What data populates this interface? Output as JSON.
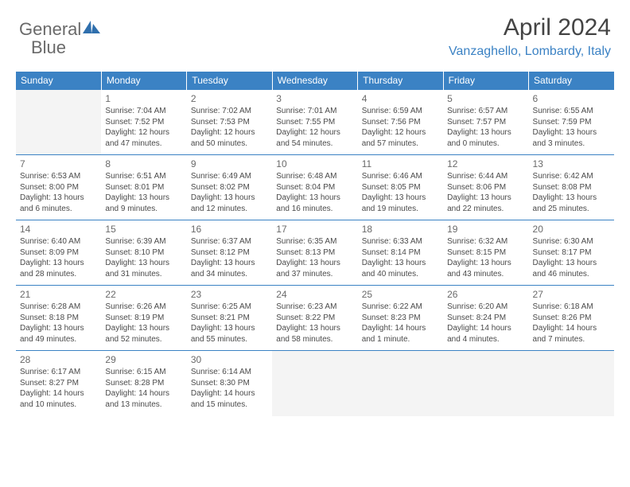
{
  "logo": {
    "primary": "General",
    "secondary": "Blue",
    "text_color": "#6a6a6a",
    "accent_color": "#2f6fad"
  },
  "title": "April 2024",
  "location": "Vanzaghello, Lombardy, Italy",
  "colors": {
    "header_bg": "#3b82c4",
    "header_text": "#ffffff",
    "row_border": "#3b82c4",
    "empty_bg": "#f4f4f4",
    "location_color": "#3b82c4",
    "title_color": "#444444"
  },
  "weekdays": [
    "Sunday",
    "Monday",
    "Tuesday",
    "Wednesday",
    "Thursday",
    "Friday",
    "Saturday"
  ],
  "grid": [
    [
      {
        "empty": true
      },
      {
        "day": "1",
        "sunrise": "Sunrise: 7:04 AM",
        "sunset": "Sunset: 7:52 PM",
        "daylight1": "Daylight: 12 hours",
        "daylight2": "and 47 minutes."
      },
      {
        "day": "2",
        "sunrise": "Sunrise: 7:02 AM",
        "sunset": "Sunset: 7:53 PM",
        "daylight1": "Daylight: 12 hours",
        "daylight2": "and 50 minutes."
      },
      {
        "day": "3",
        "sunrise": "Sunrise: 7:01 AM",
        "sunset": "Sunset: 7:55 PM",
        "daylight1": "Daylight: 12 hours",
        "daylight2": "and 54 minutes."
      },
      {
        "day": "4",
        "sunrise": "Sunrise: 6:59 AM",
        "sunset": "Sunset: 7:56 PM",
        "daylight1": "Daylight: 12 hours",
        "daylight2": "and 57 minutes."
      },
      {
        "day": "5",
        "sunrise": "Sunrise: 6:57 AM",
        "sunset": "Sunset: 7:57 PM",
        "daylight1": "Daylight: 13 hours",
        "daylight2": "and 0 minutes."
      },
      {
        "day": "6",
        "sunrise": "Sunrise: 6:55 AM",
        "sunset": "Sunset: 7:59 PM",
        "daylight1": "Daylight: 13 hours",
        "daylight2": "and 3 minutes."
      }
    ],
    [
      {
        "day": "7",
        "sunrise": "Sunrise: 6:53 AM",
        "sunset": "Sunset: 8:00 PM",
        "daylight1": "Daylight: 13 hours",
        "daylight2": "and 6 minutes."
      },
      {
        "day": "8",
        "sunrise": "Sunrise: 6:51 AM",
        "sunset": "Sunset: 8:01 PM",
        "daylight1": "Daylight: 13 hours",
        "daylight2": "and 9 minutes."
      },
      {
        "day": "9",
        "sunrise": "Sunrise: 6:49 AM",
        "sunset": "Sunset: 8:02 PM",
        "daylight1": "Daylight: 13 hours",
        "daylight2": "and 12 minutes."
      },
      {
        "day": "10",
        "sunrise": "Sunrise: 6:48 AM",
        "sunset": "Sunset: 8:04 PM",
        "daylight1": "Daylight: 13 hours",
        "daylight2": "and 16 minutes."
      },
      {
        "day": "11",
        "sunrise": "Sunrise: 6:46 AM",
        "sunset": "Sunset: 8:05 PM",
        "daylight1": "Daylight: 13 hours",
        "daylight2": "and 19 minutes."
      },
      {
        "day": "12",
        "sunrise": "Sunrise: 6:44 AM",
        "sunset": "Sunset: 8:06 PM",
        "daylight1": "Daylight: 13 hours",
        "daylight2": "and 22 minutes."
      },
      {
        "day": "13",
        "sunrise": "Sunrise: 6:42 AM",
        "sunset": "Sunset: 8:08 PM",
        "daylight1": "Daylight: 13 hours",
        "daylight2": "and 25 minutes."
      }
    ],
    [
      {
        "day": "14",
        "sunrise": "Sunrise: 6:40 AM",
        "sunset": "Sunset: 8:09 PM",
        "daylight1": "Daylight: 13 hours",
        "daylight2": "and 28 minutes."
      },
      {
        "day": "15",
        "sunrise": "Sunrise: 6:39 AM",
        "sunset": "Sunset: 8:10 PM",
        "daylight1": "Daylight: 13 hours",
        "daylight2": "and 31 minutes."
      },
      {
        "day": "16",
        "sunrise": "Sunrise: 6:37 AM",
        "sunset": "Sunset: 8:12 PM",
        "daylight1": "Daylight: 13 hours",
        "daylight2": "and 34 minutes."
      },
      {
        "day": "17",
        "sunrise": "Sunrise: 6:35 AM",
        "sunset": "Sunset: 8:13 PM",
        "daylight1": "Daylight: 13 hours",
        "daylight2": "and 37 minutes."
      },
      {
        "day": "18",
        "sunrise": "Sunrise: 6:33 AM",
        "sunset": "Sunset: 8:14 PM",
        "daylight1": "Daylight: 13 hours",
        "daylight2": "and 40 minutes."
      },
      {
        "day": "19",
        "sunrise": "Sunrise: 6:32 AM",
        "sunset": "Sunset: 8:15 PM",
        "daylight1": "Daylight: 13 hours",
        "daylight2": "and 43 minutes."
      },
      {
        "day": "20",
        "sunrise": "Sunrise: 6:30 AM",
        "sunset": "Sunset: 8:17 PM",
        "daylight1": "Daylight: 13 hours",
        "daylight2": "and 46 minutes."
      }
    ],
    [
      {
        "day": "21",
        "sunrise": "Sunrise: 6:28 AM",
        "sunset": "Sunset: 8:18 PM",
        "daylight1": "Daylight: 13 hours",
        "daylight2": "and 49 minutes."
      },
      {
        "day": "22",
        "sunrise": "Sunrise: 6:26 AM",
        "sunset": "Sunset: 8:19 PM",
        "daylight1": "Daylight: 13 hours",
        "daylight2": "and 52 minutes."
      },
      {
        "day": "23",
        "sunrise": "Sunrise: 6:25 AM",
        "sunset": "Sunset: 8:21 PM",
        "daylight1": "Daylight: 13 hours",
        "daylight2": "and 55 minutes."
      },
      {
        "day": "24",
        "sunrise": "Sunrise: 6:23 AM",
        "sunset": "Sunset: 8:22 PM",
        "daylight1": "Daylight: 13 hours",
        "daylight2": "and 58 minutes."
      },
      {
        "day": "25",
        "sunrise": "Sunrise: 6:22 AM",
        "sunset": "Sunset: 8:23 PM",
        "daylight1": "Daylight: 14 hours",
        "daylight2": "and 1 minute."
      },
      {
        "day": "26",
        "sunrise": "Sunrise: 6:20 AM",
        "sunset": "Sunset: 8:24 PM",
        "daylight1": "Daylight: 14 hours",
        "daylight2": "and 4 minutes."
      },
      {
        "day": "27",
        "sunrise": "Sunrise: 6:18 AM",
        "sunset": "Sunset: 8:26 PM",
        "daylight1": "Daylight: 14 hours",
        "daylight2": "and 7 minutes."
      }
    ],
    [
      {
        "day": "28",
        "sunrise": "Sunrise: 6:17 AM",
        "sunset": "Sunset: 8:27 PM",
        "daylight1": "Daylight: 14 hours",
        "daylight2": "and 10 minutes."
      },
      {
        "day": "29",
        "sunrise": "Sunrise: 6:15 AM",
        "sunset": "Sunset: 8:28 PM",
        "daylight1": "Daylight: 14 hours",
        "daylight2": "and 13 minutes."
      },
      {
        "day": "30",
        "sunrise": "Sunrise: 6:14 AM",
        "sunset": "Sunset: 8:30 PM",
        "daylight1": "Daylight: 14 hours",
        "daylight2": "and 15 minutes."
      },
      {
        "empty": true
      },
      {
        "empty": true
      },
      {
        "empty": true
      },
      {
        "empty": true
      }
    ]
  ]
}
